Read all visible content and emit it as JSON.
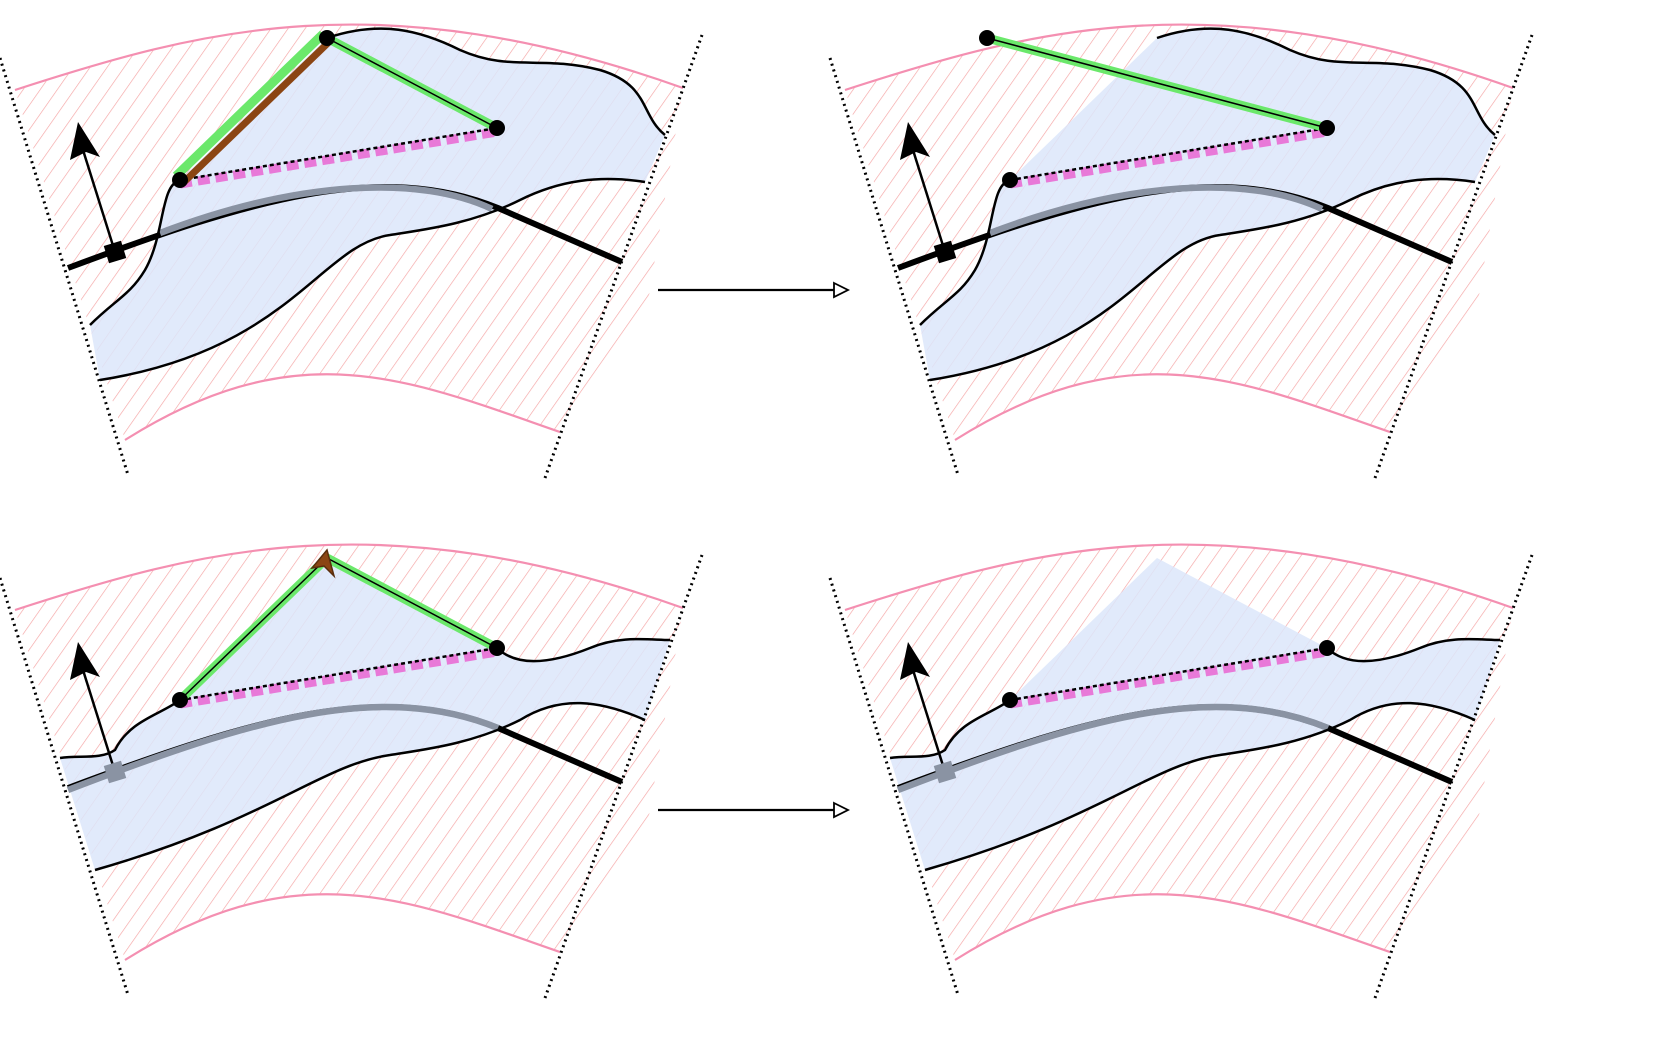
{
  "figure": {
    "panels": [
      {
        "id": "top-left",
        "highlight_bottom": false,
        "show_upper_edges": true,
        "show_brown_edge": true,
        "show_brown_arrow": false
      },
      {
        "id": "top-right",
        "highlight_bottom": false,
        "show_upper_edges": false,
        "show_brown_edge": false,
        "show_brown_arrow": false
      },
      {
        "id": "bottom-left",
        "highlight_bottom": true,
        "show_upper_edges": true,
        "show_brown_edge": false,
        "show_brown_arrow": true
      },
      {
        "id": "bottom-right",
        "highlight_bottom": true,
        "show_upper_edges": false,
        "show_brown_edge": false,
        "show_brown_arrow": false
      }
    ],
    "arrows": [
      {
        "id": "top-transition-arrow"
      },
      {
        "id": "bottom-transition-arrow"
      }
    ]
  },
  "colors": {
    "band_border": "#f48fb1",
    "hatch": "#f5a3a3",
    "region_fill": "#dce6fa",
    "curve": "#000000",
    "gray_curve": "#8a93a3",
    "green_edge": "#6be86b",
    "brown_edge": "#8b4513",
    "dashed_edge": "#e879d8",
    "vertex": "#000000"
  }
}
